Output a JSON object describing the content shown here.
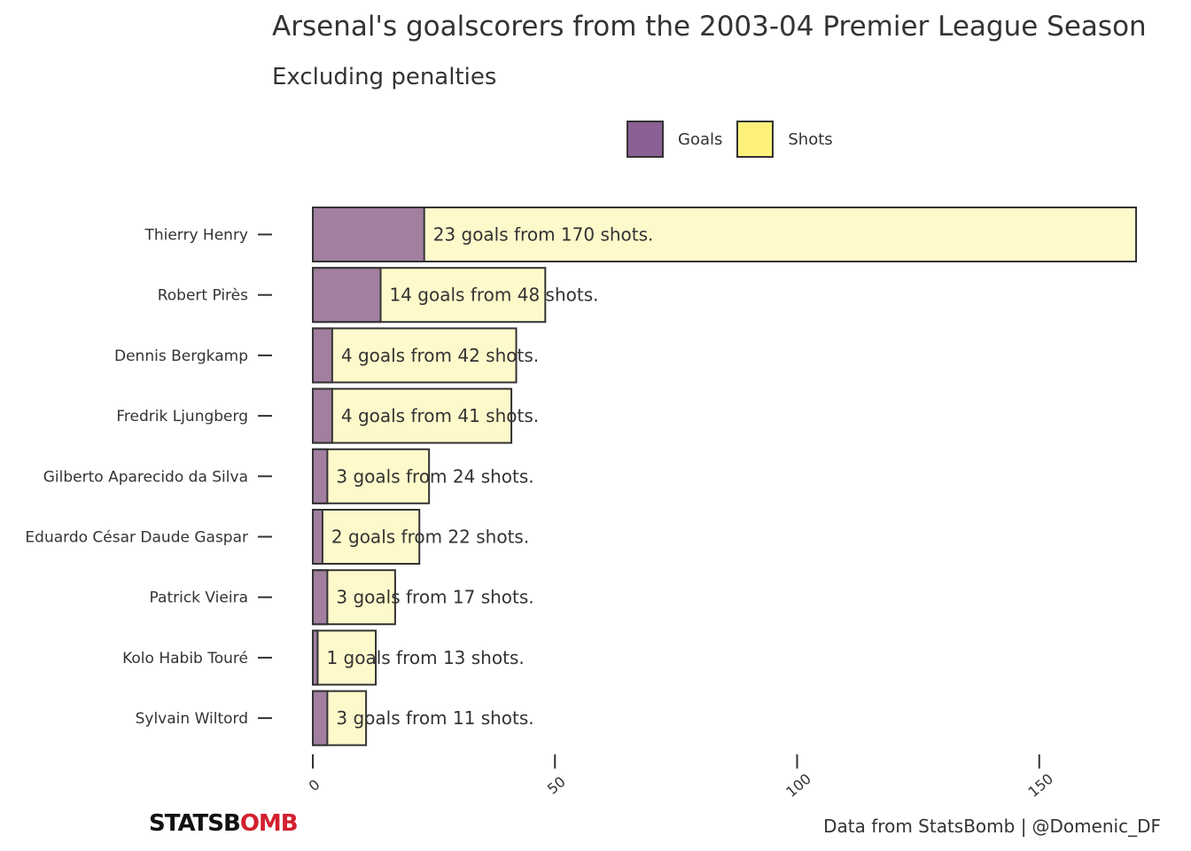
{
  "chart_data": {
    "type": "bar",
    "orientation": "horizontal",
    "title": "Arsenal's goalscorers from the 2003-04 Premier League Season",
    "subtitle": "Excluding penalties",
    "legend": {
      "position": "top",
      "entries": [
        "Goals",
        "Shots"
      ]
    },
    "categories": [
      "Thierry Henry",
      "Robert Pirès",
      "Dennis Bergkamp",
      "Fredrik Ljungberg",
      "Gilberto Aparecido da Silva",
      "Eduardo César Daude Gaspar",
      "Patrick Vieira",
      "Kolo Habib Touré",
      "Sylvain Wiltord"
    ],
    "series": [
      {
        "name": "Goals",
        "values": [
          23,
          14,
          4,
          4,
          3,
          2,
          3,
          1,
          3
        ],
        "color": "#8b6094"
      },
      {
        "name": "Shots",
        "values": [
          170,
          48,
          42,
          41,
          24,
          22,
          17,
          13,
          11
        ],
        "color": "#fdf17c"
      }
    ],
    "data_labels": [
      "23 goals from 170 shots.",
      "14 goals from 48 shots.",
      "4 goals from 42 shots.",
      "4 goals from 41 shots.",
      "3 goals from 24 shots.",
      "2 goals from 22 shots.",
      "3 goals from 17 shots.",
      "1 goals from 13 shots.",
      "3 goals from 11 shots."
    ],
    "xlim": [
      0,
      170
    ],
    "xticks": [
      0,
      50,
      100,
      150
    ],
    "xtick_labels": [
      "0",
      "50",
      "100",
      "150"
    ],
    "grid": false
  },
  "footer": {
    "logo_part1": "STATSB",
    "logo_part2": "OMB",
    "source": "Data from StatsBomb |",
    "handle": "@Domenic_DF"
  },
  "colors": {
    "goals": "#8b6094",
    "shots": "#fdf17c",
    "text": "#333333",
    "logo_red": "#d3202f"
  }
}
